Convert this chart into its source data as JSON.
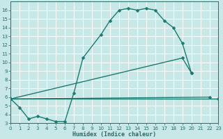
{
  "xlabel": "Humidex (Indice chaleur)",
  "bg_color": "#c8e8e8",
  "grid_color": "#b0d8d8",
  "line_color": "#1a7a6e",
  "xlim": [
    0,
    23
  ],
  "ylim": [
    3,
    17
  ],
  "series": [
    {
      "x": [
        0,
        1,
        2,
        3,
        4,
        5,
        6,
        7,
        8,
        10,
        11,
        12,
        13,
        14,
        15,
        16,
        17,
        18,
        19,
        20
      ],
      "y": [
        5.8,
        4.8,
        3.5,
        3.8,
        3.5,
        3.2,
        3.2,
        6.5,
        10.5,
        13.2,
        14.8,
        16.0,
        16.2,
        16.0,
        16.2,
        16.0,
        14.8,
        14.0,
        12.2,
        8.8
      ]
    },
    {
      "x": [
        0,
        19,
        20
      ],
      "y": [
        5.8,
        10.5,
        8.8
      ]
    },
    {
      "x": [
        0,
        22
      ],
      "y": [
        5.8,
        6.0
      ]
    },
    {
      "x": [
        0,
        23
      ],
      "y": [
        5.8,
        5.8
      ]
    }
  ]
}
